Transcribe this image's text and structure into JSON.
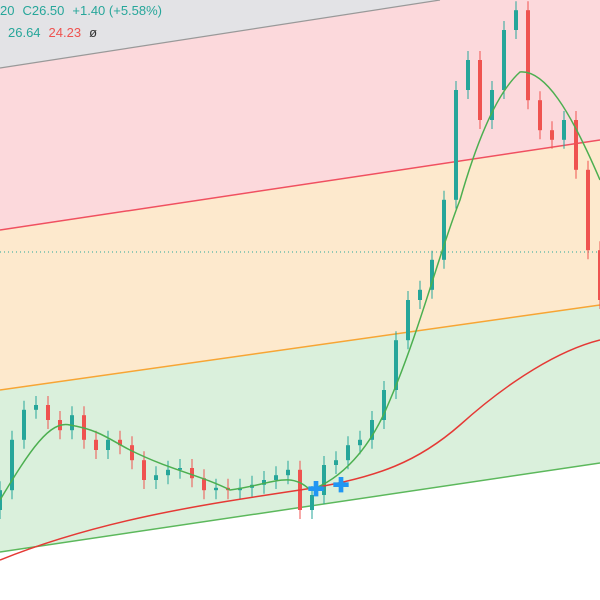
{
  "legend": {
    "line1": [
      "20",
      "C26.50",
      "+1.40 (+5.58%)"
    ],
    "line2": [
      "26.64",
      "24.23",
      "ø"
    ]
  },
  "chart_data": {
    "type": "candlestick",
    "ylim": [
      0,
      100
    ],
    "up_color": "#26a69a",
    "down_color": "#ef5350",
    "open": [
      15,
      18.3,
      26.7,
      31.7,
      32.5,
      30,
      28.3,
      30.8,
      26.7,
      25,
      26.7,
      25.8,
      23.3,
      20,
      20.8,
      21.7,
      22,
      20.3,
      18.3,
      18.7,
      18.3,
      18.7,
      19.2,
      20,
      20.8,
      21.7,
      15,
      17.5,
      22.5,
      23.3,
      25.8,
      26.7,
      30,
      35,
      43.3,
      50,
      51.7,
      56.7,
      66.7,
      85,
      90,
      80,
      85,
      95,
      98.3,
      83.3,
      78.3,
      76.7,
      80,
      71.7,
      58.3
    ],
    "high": [
      19.8,
      28.2,
      33.2,
      34,
      34,
      31.5,
      32.3,
      32.3,
      28.2,
      28.2,
      28.2,
      27.3,
      24.8,
      22.3,
      23.2,
      23.5,
      23.5,
      21.8,
      20.2,
      20.2,
      20.2,
      20.7,
      21.5,
      22.3,
      23.2,
      23.2,
      19,
      24,
      24.8,
      27.3,
      28.2,
      31.5,
      36.5,
      44.8,
      51.5,
      53.2,
      58.2,
      68.2,
      86.5,
      91.5,
      91.5,
      86.5,
      96.5,
      99.8,
      99.8,
      84.8,
      79.8,
      81.5,
      81.5,
      73.2,
      59.8
    ],
    "low": [
      13.5,
      16.8,
      25.2,
      30.2,
      28.5,
      26.8,
      26.8,
      25.2,
      23.5,
      23.5,
      24.3,
      21.8,
      18.5,
      18.5,
      19.3,
      20.2,
      18.8,
      16.8,
      16.8,
      16.8,
      16.8,
      17.2,
      17.7,
      18.5,
      19.3,
      13.5,
      13.5,
      16,
      21,
      21.8,
      24.3,
      25.2,
      28.5,
      33.5,
      41.8,
      48.5,
      50.2,
      55.2,
      65.2,
      83.5,
      78.5,
      78.5,
      83.5,
      93.5,
      81.8,
      76.8,
      75.2,
      75.2,
      70.2,
      56.8,
      48.5
    ],
    "close": [
      18.3,
      26.7,
      31.7,
      32.5,
      30,
      28.3,
      30.8,
      26.7,
      25,
      26.7,
      25.8,
      23.3,
      20,
      20.8,
      21.7,
      22,
      20.3,
      18.3,
      18.7,
      18.3,
      18.7,
      19.2,
      20,
      20.8,
      21.7,
      15,
      17.5,
      22.5,
      23.3,
      25.8,
      26.7,
      30,
      35,
      43.3,
      50,
      51.7,
      56.7,
      66.7,
      85,
      90,
      80,
      85,
      95,
      98.3,
      83.3,
      78.3,
      76.7,
      80,
      71.7,
      58.3,
      50
    ]
  }
}
